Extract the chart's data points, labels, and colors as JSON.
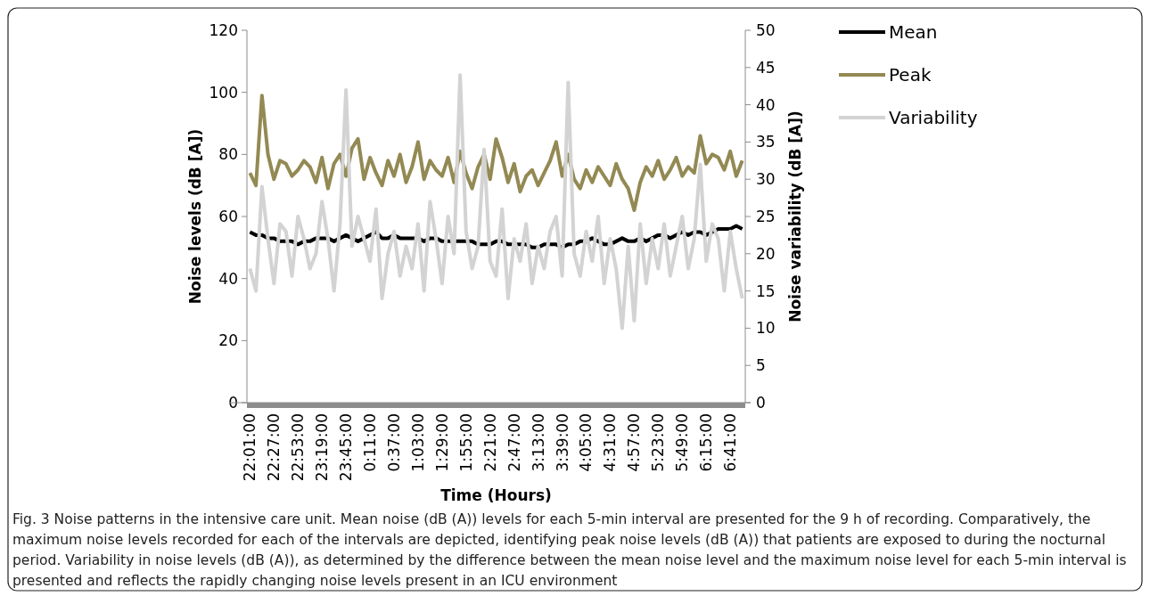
{
  "chart_data": {
    "type": "line",
    "xlabel": "Time (Hours)",
    "ylabel": "Noise levels (dB [A])",
    "y2label": "Noise variability (dB [A])",
    "categories": [
      "22:01:00",
      null,
      null,
      null,
      "22:27:00",
      null,
      null,
      null,
      "22:53:00",
      null,
      null,
      null,
      "23:19:00",
      null,
      null,
      null,
      "23:45:00",
      null,
      null,
      null,
      "0:11:00",
      null,
      null,
      null,
      "0:37:00",
      null,
      null,
      null,
      "1:03:00",
      null,
      null,
      null,
      "1:29:00",
      null,
      null,
      null,
      "1:55:00",
      null,
      null,
      null,
      "2:21:00",
      null,
      null,
      null,
      "2:47:00",
      null,
      null,
      null,
      "3:13:00",
      null,
      null,
      null,
      "3:39:00",
      null,
      null,
      null,
      "4:05:00",
      null,
      null,
      null,
      "4:31:00",
      null,
      null,
      null,
      "4:57:00",
      null,
      null,
      null,
      "5:23:00",
      null,
      null,
      null,
      "5:49:00",
      null,
      null,
      null,
      "6:15:00",
      null,
      null,
      null,
      "6:41:00",
      null,
      null
    ],
    "ylim": [
      0,
      120
    ],
    "yticks": [
      0,
      20,
      40,
      60,
      80,
      100,
      120
    ],
    "y2lim": [
      0,
      50
    ],
    "y2ticks": [
      0,
      5,
      10,
      15,
      20,
      25,
      30,
      35,
      40,
      45,
      50
    ],
    "legend": "right",
    "series": [
      {
        "name": "Mean",
        "color": "#000000",
        "values": [
          55,
          54,
          54,
          53,
          53,
          52,
          52,
          52,
          51,
          52,
          52,
          53,
          53,
          53,
          52,
          53,
          54,
          53,
          52,
          53,
          54,
          55,
          53,
          53,
          54,
          53,
          53,
          53,
          53,
          52,
          53,
          53,
          52,
          52,
          52,
          52,
          52,
          52,
          51,
          51,
          51,
          52,
          52,
          51,
          51,
          51,
          51,
          50,
          50,
          51,
          51,
          51,
          50,
          51,
          51,
          52,
          52,
          53,
          52,
          51,
          51,
          52,
          53,
          52,
          52,
          53,
          52,
          53,
          54,
          54,
          53,
          54,
          55,
          54,
          55,
          55,
          54,
          55,
          56,
          56,
          56,
          57,
          56
        ]
      },
      {
        "name": "Peak",
        "color": "#938953",
        "values": [
          74,
          70,
          99,
          80,
          72,
          78,
          77,
          73,
          75,
          78,
          76,
          71,
          79,
          69,
          77,
          80,
          73,
          82,
          85,
          72,
          79,
          74,
          70,
          78,
          73,
          80,
          71,
          76,
          84,
          72,
          78,
          75,
          73,
          79,
          71,
          81,
          74,
          69,
          76,
          80,
          72,
          85,
          79,
          71,
          77,
          68,
          73,
          75,
          70,
          74,
          78,
          84,
          73,
          80,
          72,
          69,
          75,
          71,
          76,
          73,
          70,
          77,
          72,
          69,
          62,
          71,
          76,
          73,
          78,
          72,
          75,
          79,
          73,
          76,
          74,
          86,
          77,
          80,
          79,
          75,
          81,
          73,
          78
        ]
      },
      {
        "name": "Variability",
        "color": "#d3d3d3",
        "axis": "y2",
        "values": [
          18,
          15,
          29,
          22,
          16,
          24,
          23,
          17,
          25,
          22,
          18,
          20,
          27,
          22,
          15,
          24,
          42,
          21,
          25,
          22,
          19,
          26,
          14,
          20,
          23,
          17,
          21,
          18,
          24,
          15,
          27,
          22,
          16,
          25,
          20,
          44,
          23,
          18,
          21,
          34,
          19,
          17,
          26,
          14,
          22,
          19,
          24,
          16,
          21,
          18,
          23,
          25,
          17,
          43,
          20,
          17,
          23,
          19,
          25,
          16,
          22,
          18,
          10,
          21,
          11,
          24,
          16,
          22,
          18,
          24,
          17,
          21,
          25,
          18,
          22,
          32,
          19,
          24,
          22,
          15,
          23,
          18,
          14
        ]
      }
    ],
    "annotations": [
      "Fig. 3 Noise patterns in the intensive care unit. Mean noise (dB (A)) levels for each 5-min interval are presented for the 9 h of recording. Comparatively, the maximum noise levels recorded for each of the intervals are depicted, identifying peak noise levels (dB (A)) that patients are exposed to during the nocturnal period. Variability in noise levels (dB (A)), as determined by the difference between the mean noise level and the maximum noise level for each 5-min interval is presented and reflects the rapidly changing noise levels present in an ICU environment"
    ]
  }
}
